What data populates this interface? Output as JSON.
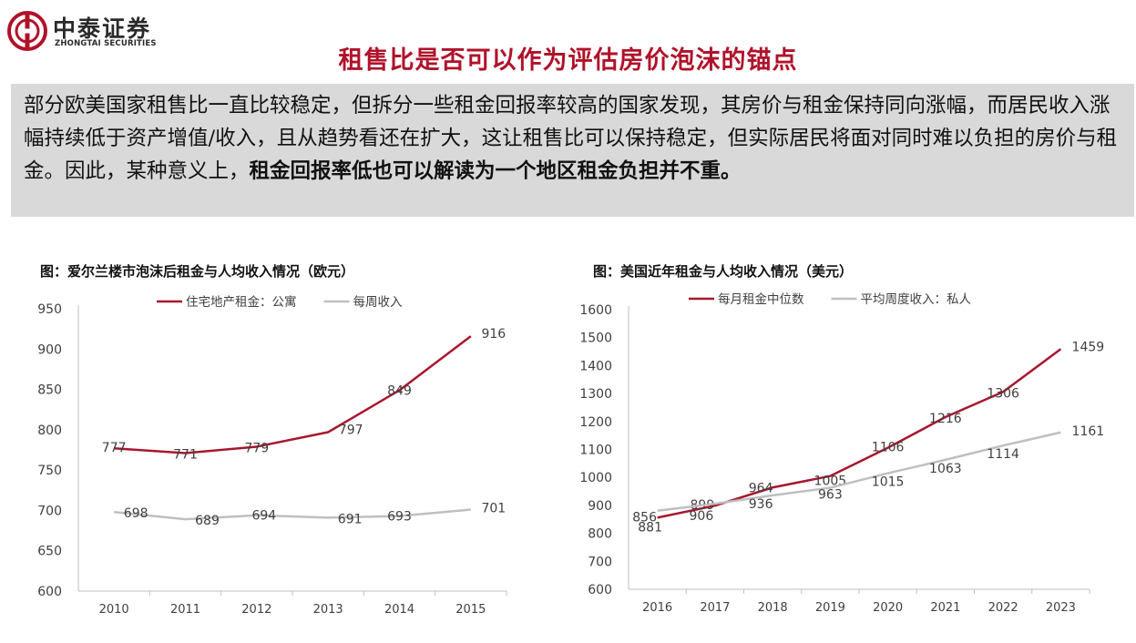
{
  "logo": {
    "name_cn": "中泰证券",
    "name_en": "ZHONGTAI SECURITIES",
    "mark_color": "#b0122a"
  },
  "title": "租售比是否可以作为评估房价泡沫的锚点",
  "summary": {
    "text": "部分欧美国家租售比一直比较稳定，但拆分一些租金回报率较高的国家发现，其房价与租金保持同向涨幅，而居民收入涨幅持续低于资产增值/收入，且从趋势看还在扩大，这让租售比可以保持稳定，但实际居民将面对同时难以负担的房价与租金。因此，某种意义上，",
    "bold_text": "租金回报率低也可以解读为一个地区租金负担并不重。"
  },
  "colors": {
    "series1": "#a8172e",
    "series2": "#bfbfbf",
    "axis": "#bfbfbf",
    "text": "#404040",
    "accent": "#b0122a"
  },
  "chart_data": [
    {
      "type": "line",
      "title": "图：爱尔兰楼市泡沫后租金与人均收入情况（欧元）",
      "categories": [
        "2010",
        "2011",
        "2012",
        "2013",
        "2014",
        "2015"
      ],
      "ylim": [
        600,
        950
      ],
      "yticks": [
        "600",
        "650",
        "700",
        "750",
        "800",
        "850",
        "900",
        "950"
      ],
      "legend_position": "top",
      "grid": false,
      "series": [
        {
          "name": "住宅地产租金：公寓",
          "values": [
            777,
            771,
            779,
            797,
            849,
            916
          ],
          "labels": [
            "777",
            "771",
            "779",
            "797",
            "849",
            "916"
          ]
        },
        {
          "name": "每周收入",
          "values": [
            698,
            689,
            694,
            691,
            693,
            701
          ],
          "labels": [
            "698",
            "689",
            "694",
            "691",
            "693",
            "701"
          ]
        }
      ]
    },
    {
      "type": "line",
      "title": "图：美国近年租金与人均收入情况（美元）",
      "categories": [
        "2016",
        "2017",
        "2018",
        "2019",
        "2020",
        "2021",
        "2022",
        "2023"
      ],
      "ylim": [
        600,
        1600
      ],
      "yticks": [
        "600",
        "700",
        "800",
        "900",
        "1000",
        "1100",
        "1200",
        "1300",
        "1400",
        "1500",
        "1600"
      ],
      "legend_position": "top",
      "grid": false,
      "series": [
        {
          "name": "每月租金中位数",
          "values": [
            856,
            899,
            964,
            1005,
            1106,
            1216,
            1306,
            1459
          ],
          "labels": [
            "856",
            "899",
            "964",
            "1005",
            "1106",
            "1216",
            "1306",
            "1459"
          ]
        },
        {
          "name": "平均周度收入：私人",
          "values": [
            881,
            906,
            936,
            963,
            1015,
            1063,
            1114,
            1161
          ],
          "labels": [
            "881",
            "906",
            "936",
            "963",
            "1015",
            "1063",
            "1114",
            "1161"
          ]
        }
      ]
    }
  ]
}
